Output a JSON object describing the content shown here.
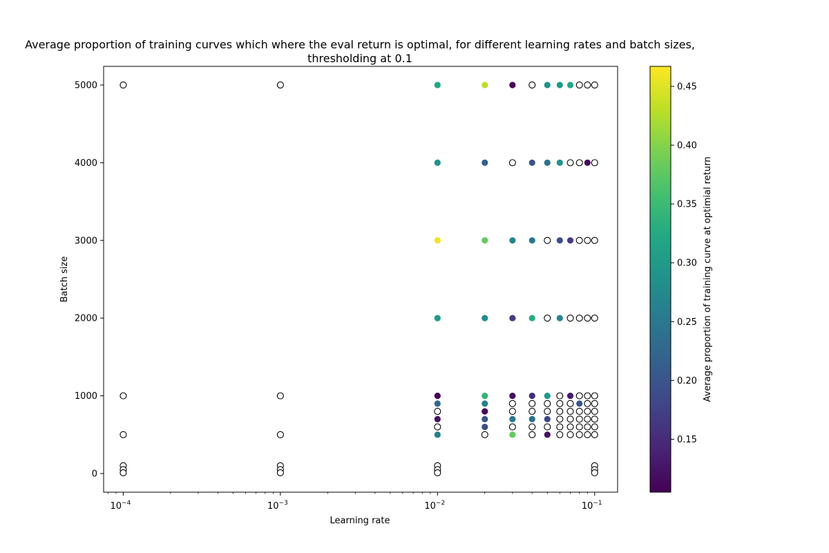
{
  "chart_data": {
    "type": "scatter",
    "title": "Average proportion of training curves which where the eval return is optimal, for different learning rates and batch sizes,",
    "title_line2": "thresholding at 0.1",
    "xlabel": "Learning rate",
    "ylabel": "Batch size",
    "xscale": "log",
    "xlim": [
      7.5e-05,
      0.14
    ],
    "ylim": [
      -240,
      5240
    ],
    "x_ticks": [
      {
        "value": 0.0001,
        "base": "10",
        "exp": "−4"
      },
      {
        "value": 0.001,
        "base": "10",
        "exp": "−3"
      },
      {
        "value": 0.01,
        "base": "10",
        "exp": "−2"
      },
      {
        "value": 0.1,
        "base": "10",
        "exp": "−1"
      }
    ],
    "y_ticks": [
      0,
      1000,
      2000,
      3000,
      4000,
      5000
    ],
    "y_tick_labels": [
      "0",
      "1000",
      "2000",
      "3000",
      "4000",
      "5000"
    ],
    "colorbar": {
      "label": "Average proportion of training curve at optimial return",
      "colormap": "viridis",
      "range": [
        0.105,
        0.467
      ],
      "ticks": [
        0.15,
        0.2,
        0.25,
        0.3,
        0.35,
        0.4,
        0.45
      ],
      "tick_labels": [
        "0.15",
        "0.20",
        "0.25",
        "0.30",
        "0.35",
        "0.40",
        "0.45"
      ]
    },
    "empty_marker_meaning": "no optimal return (hollow circle)",
    "points": [
      {
        "x": 0.0001,
        "y": 5000,
        "v": null
      },
      {
        "x": 0.001,
        "y": 5000,
        "v": null
      },
      {
        "x": 0.01,
        "y": 5000,
        "v": 0.32
      },
      {
        "x": 0.02,
        "y": 5000,
        "v": 0.43
      },
      {
        "x": 0.03,
        "y": 5000,
        "v": 0.11
      },
      {
        "x": 0.04,
        "y": 5000,
        "v": null
      },
      {
        "x": 0.05,
        "y": 5000,
        "v": 0.29
      },
      {
        "x": 0.06,
        "y": 5000,
        "v": 0.3
      },
      {
        "x": 0.07,
        "y": 5000,
        "v": 0.32
      },
      {
        "x": 0.08,
        "y": 5000,
        "v": null
      },
      {
        "x": 0.09,
        "y": 5000,
        "v": null
      },
      {
        "x": 0.1,
        "y": 5000,
        "v": null
      },
      {
        "x": 0.01,
        "y": 4000,
        "v": 0.29
      },
      {
        "x": 0.02,
        "y": 4000,
        "v": 0.21
      },
      {
        "x": 0.03,
        "y": 4000,
        "v": null
      },
      {
        "x": 0.04,
        "y": 4000,
        "v": 0.2
      },
      {
        "x": 0.05,
        "y": 4000,
        "v": 0.24
      },
      {
        "x": 0.06,
        "y": 4000,
        "v": 0.29
      },
      {
        "x": 0.07,
        "y": 4000,
        "v": null
      },
      {
        "x": 0.08,
        "y": 4000,
        "v": null
      },
      {
        "x": 0.09,
        "y": 4000,
        "v": 0.11
      },
      {
        "x": 0.1,
        "y": 4000,
        "v": null
      },
      {
        "x": 0.01,
        "y": 3000,
        "v": 0.46
      },
      {
        "x": 0.02,
        "y": 3000,
        "v": 0.38
      },
      {
        "x": 0.03,
        "y": 3000,
        "v": 0.27
      },
      {
        "x": 0.04,
        "y": 3000,
        "v": 0.25
      },
      {
        "x": 0.05,
        "y": 3000,
        "v": null
      },
      {
        "x": 0.06,
        "y": 3000,
        "v": 0.19
      },
      {
        "x": 0.07,
        "y": 3000,
        "v": 0.17
      },
      {
        "x": 0.08,
        "y": 3000,
        "v": null
      },
      {
        "x": 0.09,
        "y": 3000,
        "v": null
      },
      {
        "x": 0.1,
        "y": 3000,
        "v": null
      },
      {
        "x": 0.01,
        "y": 2000,
        "v": 0.3
      },
      {
        "x": 0.02,
        "y": 2000,
        "v": 0.28
      },
      {
        "x": 0.03,
        "y": 2000,
        "v": 0.17
      },
      {
        "x": 0.04,
        "y": 2000,
        "v": 0.33
      },
      {
        "x": 0.05,
        "y": 2000,
        "v": null
      },
      {
        "x": 0.06,
        "y": 2000,
        "v": 0.27
      },
      {
        "x": 0.07,
        "y": 2000,
        "v": null
      },
      {
        "x": 0.08,
        "y": 2000,
        "v": null
      },
      {
        "x": 0.09,
        "y": 2000,
        "v": null
      },
      {
        "x": 0.1,
        "y": 2000,
        "v": null
      },
      {
        "x": 0.0001,
        "y": 1000,
        "v": null
      },
      {
        "x": 0.001,
        "y": 1000,
        "v": null
      },
      {
        "x": 0.01,
        "y": 1000,
        "v": 0.11
      },
      {
        "x": 0.02,
        "y": 1000,
        "v": 0.34
      },
      {
        "x": 0.03,
        "y": 1000,
        "v": 0.12
      },
      {
        "x": 0.04,
        "y": 1000,
        "v": 0.15
      },
      {
        "x": 0.05,
        "y": 1000,
        "v": 0.3
      },
      {
        "x": 0.06,
        "y": 1000,
        "v": null
      },
      {
        "x": 0.07,
        "y": 1000,
        "v": 0.13
      },
      {
        "x": 0.08,
        "y": 1000,
        "v": null
      },
      {
        "x": 0.09,
        "y": 1000,
        "v": null
      },
      {
        "x": 0.1,
        "y": 1000,
        "v": null
      },
      {
        "x": 0.01,
        "y": 900,
        "v": 0.23
      },
      {
        "x": 0.02,
        "y": 900,
        "v": 0.26
      },
      {
        "x": 0.03,
        "y": 900,
        "v": null
      },
      {
        "x": 0.04,
        "y": 900,
        "v": null
      },
      {
        "x": 0.05,
        "y": 900,
        "v": null
      },
      {
        "x": 0.06,
        "y": 900,
        "v": null
      },
      {
        "x": 0.07,
        "y": 900,
        "v": null
      },
      {
        "x": 0.08,
        "y": 900,
        "v": 0.2
      },
      {
        "x": 0.09,
        "y": 900,
        "v": null
      },
      {
        "x": 0.1,
        "y": 900,
        "v": null
      },
      {
        "x": 0.01,
        "y": 800,
        "v": null
      },
      {
        "x": 0.02,
        "y": 800,
        "v": 0.11
      },
      {
        "x": 0.03,
        "y": 800,
        "v": null
      },
      {
        "x": 0.04,
        "y": 800,
        "v": null
      },
      {
        "x": 0.05,
        "y": 800,
        "v": null
      },
      {
        "x": 0.06,
        "y": 800,
        "v": null
      },
      {
        "x": 0.07,
        "y": 800,
        "v": null
      },
      {
        "x": 0.08,
        "y": 800,
        "v": null
      },
      {
        "x": 0.09,
        "y": 800,
        "v": null
      },
      {
        "x": 0.1,
        "y": 800,
        "v": null
      },
      {
        "x": 0.01,
        "y": 700,
        "v": 0.12
      },
      {
        "x": 0.02,
        "y": 700,
        "v": 0.2
      },
      {
        "x": 0.03,
        "y": 700,
        "v": 0.25
      },
      {
        "x": 0.04,
        "y": 700,
        "v": 0.24
      },
      {
        "x": 0.05,
        "y": 700,
        "v": 0.18
      },
      {
        "x": 0.06,
        "y": 700,
        "v": null
      },
      {
        "x": 0.07,
        "y": 700,
        "v": null
      },
      {
        "x": 0.08,
        "y": 700,
        "v": null
      },
      {
        "x": 0.09,
        "y": 700,
        "v": null
      },
      {
        "x": 0.1,
        "y": 700,
        "v": null
      },
      {
        "x": 0.01,
        "y": 600,
        "v": null
      },
      {
        "x": 0.02,
        "y": 600,
        "v": 0.19
      },
      {
        "x": 0.03,
        "y": 600,
        "v": null
      },
      {
        "x": 0.04,
        "y": 600,
        "v": null
      },
      {
        "x": 0.05,
        "y": 600,
        "v": null
      },
      {
        "x": 0.06,
        "y": 600,
        "v": null
      },
      {
        "x": 0.07,
        "y": 600,
        "v": null
      },
      {
        "x": 0.08,
        "y": 600,
        "v": null
      },
      {
        "x": 0.09,
        "y": 600,
        "v": null
      },
      {
        "x": 0.1,
        "y": 600,
        "v": null
      },
      {
        "x": 0.0001,
        "y": 500,
        "v": null
      },
      {
        "x": 0.001,
        "y": 500,
        "v": null
      },
      {
        "x": 0.01,
        "y": 500,
        "v": 0.26
      },
      {
        "x": 0.02,
        "y": 500,
        "v": null
      },
      {
        "x": 0.03,
        "y": 500,
        "v": 0.38
      },
      {
        "x": 0.04,
        "y": 500,
        "v": null
      },
      {
        "x": 0.05,
        "y": 500,
        "v": 0.12
      },
      {
        "x": 0.06,
        "y": 500,
        "v": null
      },
      {
        "x": 0.07,
        "y": 500,
        "v": null
      },
      {
        "x": 0.08,
        "y": 500,
        "v": null
      },
      {
        "x": 0.09,
        "y": 500,
        "v": null
      },
      {
        "x": 0.1,
        "y": 500,
        "v": null
      },
      {
        "x": 0.0001,
        "y": 100,
        "v": null
      },
      {
        "x": 0.0001,
        "y": 50,
        "v": null
      },
      {
        "x": 0.0001,
        "y": 10,
        "v": null
      },
      {
        "x": 0.001,
        "y": 100,
        "v": null
      },
      {
        "x": 0.001,
        "y": 50,
        "v": null
      },
      {
        "x": 0.001,
        "y": 10,
        "v": null
      },
      {
        "x": 0.01,
        "y": 100,
        "v": null
      },
      {
        "x": 0.01,
        "y": 50,
        "v": null
      },
      {
        "x": 0.01,
        "y": 10,
        "v": null
      },
      {
        "x": 0.1,
        "y": 100,
        "v": null
      },
      {
        "x": 0.1,
        "y": 50,
        "v": null
      },
      {
        "x": 0.1,
        "y": 10,
        "v": null
      }
    ]
  }
}
